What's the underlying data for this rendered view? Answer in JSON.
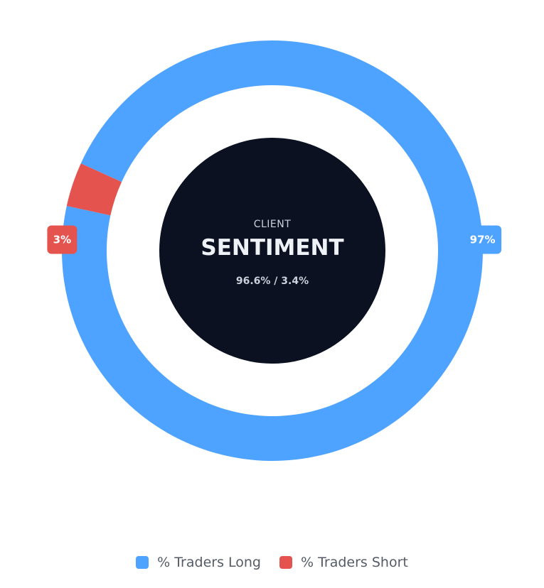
{
  "chart_data": {
    "type": "pie",
    "variant": "donut",
    "title": "",
    "series": [
      {
        "name": "% Traders Long",
        "value": 96.6,
        "label": "97%",
        "color": "#4da3ff"
      },
      {
        "name": "% Traders Short",
        "value": 3.4,
        "label": "3%",
        "color": "#e5534f"
      }
    ],
    "center": {
      "kicker": "CLIENT",
      "headline": "SENTIMENT",
      "ratio": "96.6% / 3.4%",
      "background": "#0b1120"
    },
    "legend_position": "bottom"
  },
  "legend": {
    "items": [
      {
        "label": "% Traders Long",
        "color": "#4da3ff"
      },
      {
        "label": "% Traders Short",
        "color": "#e5534f"
      }
    ]
  }
}
